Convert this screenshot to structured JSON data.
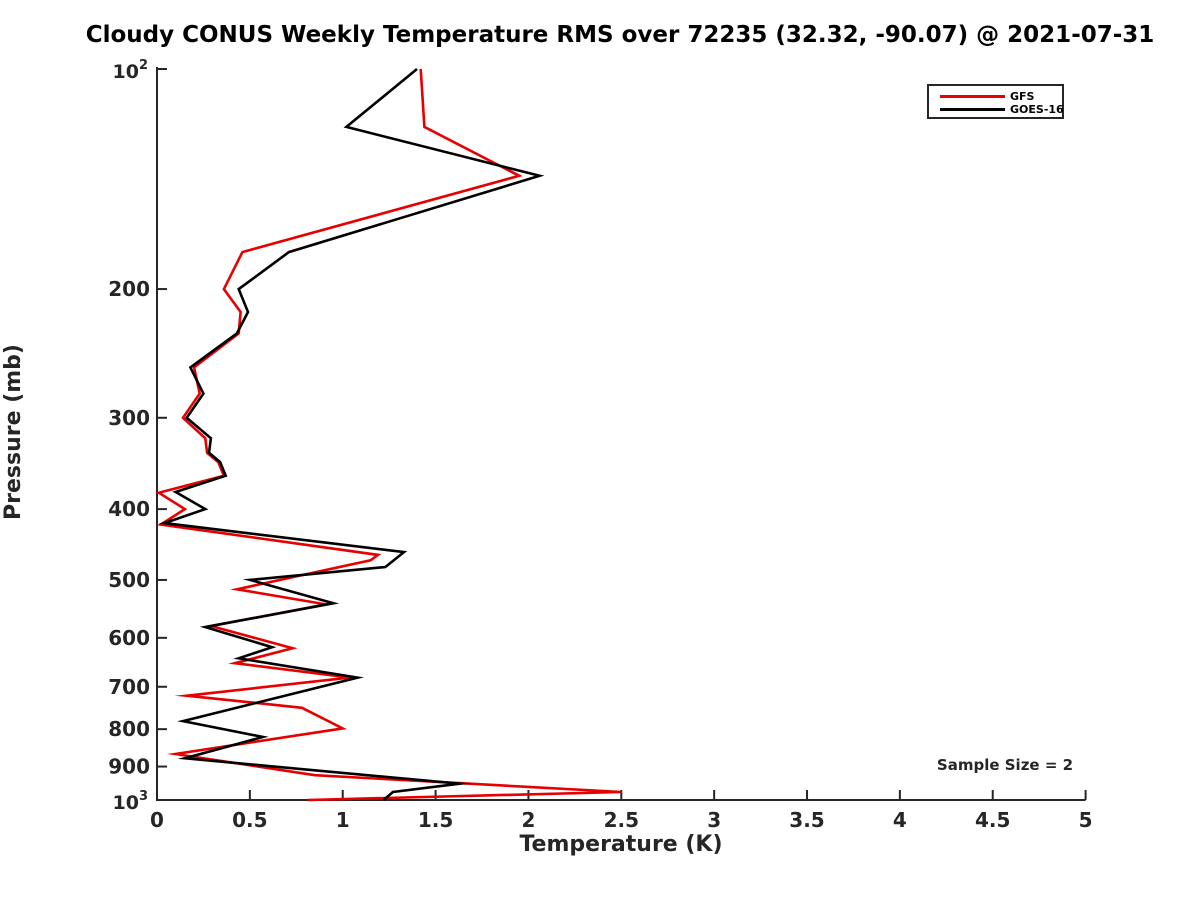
{
  "chart_data": {
    "type": "line",
    "title": "Cloudy CONUS Weekly Temperature RMS over 72235 (32.32, -90.07) @ 2021-07-31",
    "xlabel": "Temperature (K)",
    "ylabel": "Pressure (mb)",
    "xlim": [
      0,
      5
    ],
    "ylim": [
      100,
      1000
    ],
    "yscale": "log",
    "y_inverted": true,
    "grid": false,
    "legend_position": "upper right",
    "x_ticks": [
      {
        "v": 0,
        "label": "0"
      },
      {
        "v": 0.5,
        "label": "0.5"
      },
      {
        "v": 1,
        "label": "1"
      },
      {
        "v": 1.5,
        "label": "1.5"
      },
      {
        "v": 2,
        "label": "2"
      },
      {
        "v": 2.5,
        "label": "2.5"
      },
      {
        "v": 3,
        "label": "3"
      },
      {
        "v": 3.5,
        "label": "3.5"
      },
      {
        "v": 4,
        "label": "4"
      },
      {
        "v": 4.5,
        "label": "4.5"
      },
      {
        "v": 5,
        "label": "5"
      }
    ],
    "y_ticks": [
      {
        "v": 100,
        "base": "10",
        "sup": "2"
      },
      {
        "v": 200,
        "label": "200"
      },
      {
        "v": 300,
        "label": "300"
      },
      {
        "v": 400,
        "label": "400"
      },
      {
        "v": 500,
        "label": "500"
      },
      {
        "v": 600,
        "label": "600"
      },
      {
        "v": 700,
        "label": "700"
      },
      {
        "v": 800,
        "label": "800"
      },
      {
        "v": 900,
        "label": "900"
      },
      {
        "v": 1000,
        "base": "10",
        "sup": "3"
      }
    ],
    "annotation": {
      "text": "Sample Size = 2"
    },
    "series": [
      {
        "name": "GFS",
        "color": "#e60000",
        "points_format": [
          "temperature_K",
          "pressure_mb"
        ],
        "points": [
          [
            1.42,
            100
          ],
          [
            1.44,
            120
          ],
          [
            1.95,
            140
          ],
          [
            0.46,
            178
          ],
          [
            0.36,
            200
          ],
          [
            0.45,
            215
          ],
          [
            0.44,
            230
          ],
          [
            0.2,
            256
          ],
          [
            0.23,
            278
          ],
          [
            0.14,
            300
          ],
          [
            0.26,
            320
          ],
          [
            0.27,
            335
          ],
          [
            0.33,
            345
          ],
          [
            0.36,
            360
          ],
          [
            0.01,
            380
          ],
          [
            0.15,
            400
          ],
          [
            0.02,
            420
          ],
          [
            1.19,
            462
          ],
          [
            1.15,
            470
          ],
          [
            0.43,
            515
          ],
          [
            0.91,
            540
          ],
          [
            0.29,
            578
          ],
          [
            0.73,
            620
          ],
          [
            0.42,
            650
          ],
          [
            1.04,
            680
          ],
          [
            0.16,
            720
          ],
          [
            0.5,
            735
          ],
          [
            0.78,
            748
          ],
          [
            1.0,
            798
          ],
          [
            0.1,
            865
          ],
          [
            0.85,
            925
          ],
          [
            2.5,
            975
          ],
          [
            0.81,
            1000
          ]
        ]
      },
      {
        "name": "GOES-16",
        "color": "#000000",
        "points_format": [
          "temperature_K",
          "pressure_mb"
        ],
        "points": [
          [
            1.4,
            100
          ],
          [
            1.02,
            120
          ],
          [
            2.06,
            140
          ],
          [
            0.71,
            178
          ],
          [
            0.44,
            200
          ],
          [
            0.49,
            215
          ],
          [
            0.43,
            230
          ],
          [
            0.18,
            256
          ],
          [
            0.25,
            278
          ],
          [
            0.16,
            300
          ],
          [
            0.29,
            320
          ],
          [
            0.28,
            335
          ],
          [
            0.34,
            345
          ],
          [
            0.37,
            360
          ],
          [
            0.1,
            379
          ],
          [
            0.26,
            400
          ],
          [
            0.04,
            418
          ],
          [
            1.33,
            458
          ],
          [
            1.23,
            480
          ],
          [
            0.5,
            500
          ],
          [
            0.95,
            538
          ],
          [
            0.26,
            580
          ],
          [
            0.62,
            618
          ],
          [
            0.44,
            640
          ],
          [
            1.08,
            680
          ],
          [
            0.14,
            780
          ],
          [
            0.57,
            820
          ],
          [
            0.15,
            877
          ],
          [
            1.63,
            950
          ],
          [
            1.27,
            975
          ],
          [
            1.22,
            1000
          ]
        ]
      }
    ]
  }
}
